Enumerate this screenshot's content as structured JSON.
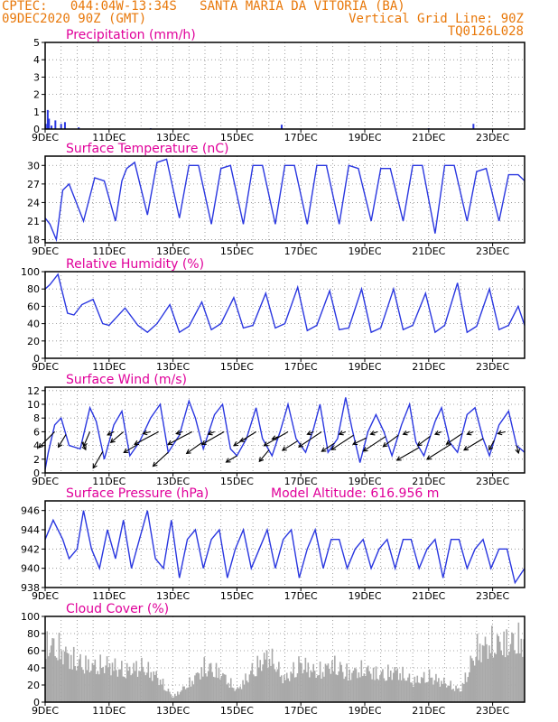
{
  "header": {
    "line1_left": "CPTEC:   044:04W-13:34S   SANTA MARIA DA VITORIA (BA)",
    "line2_left": "09DEC2020 90Z (GMT)",
    "line2_right": "Vertical Grid Line: 90Z",
    "line3_right": "TQ0126L028"
  },
  "colors": {
    "header": "#e8780a",
    "title": "#e0009a",
    "series": "#2a37e0",
    "cloud": "#a9a9a9",
    "grid": "#888888",
    "frame": "#000000"
  },
  "x_axis": {
    "start_day": 9,
    "end_day": 24,
    "tick_labels": [
      "9DEC",
      "11DEC",
      "13DEC",
      "15DEC",
      "17DEC",
      "19DEC",
      "21DEC",
      "23DEC"
    ],
    "tick_days": [
      9,
      11,
      13,
      15,
      17,
      19,
      21,
      23
    ]
  },
  "chart_data": [
    {
      "id": "precipitation",
      "type": "bar",
      "title": "Precipitation (mm/h)",
      "ylim": [
        0,
        5
      ],
      "yticks": [
        0,
        1,
        2,
        3,
        4,
        5
      ],
      "x": [
        9.02,
        9.08,
        9.12,
        9.2,
        9.32,
        9.5,
        9.62,
        10.05,
        12.3,
        16.4,
        21.0,
        22.4
      ],
      "values": [
        0.3,
        1.1,
        0.6,
        0.2,
        0.5,
        0.3,
        0.4,
        0.1,
        0.05,
        0.25,
        0.05,
        0.3
      ]
    },
    {
      "id": "temperature",
      "type": "line",
      "title": "Surface Temperature (nC)",
      "ylim": [
        17.5,
        31.5
      ],
      "yticks": [
        18,
        21,
        24,
        27,
        30
      ],
      "x": [
        9.0,
        9.15,
        9.35,
        9.55,
        9.75,
        10.2,
        10.55,
        10.85,
        11.2,
        11.4,
        11.55,
        11.8,
        12.2,
        12.5,
        12.8,
        13.2,
        13.5,
        13.8,
        14.2,
        14.5,
        14.8,
        15.2,
        15.5,
        15.8,
        16.2,
        16.5,
        16.8,
        17.2,
        17.5,
        17.8,
        18.2,
        18.5,
        18.8,
        19.2,
        19.5,
        19.8,
        20.2,
        20.5,
        20.8,
        21.2,
        21.5,
        21.8,
        22.2,
        22.5,
        22.8,
        23.2,
        23.5,
        23.8,
        24.0
      ],
      "y": [
        21.5,
        20.5,
        18.0,
        26.0,
        27.0,
        21.0,
        28.0,
        27.5,
        21.0,
        27.5,
        29.5,
        30.5,
        22.0,
        30.5,
        31.0,
        21.5,
        30.0,
        30.0,
        20.5,
        29.5,
        30.0,
        20.5,
        30.0,
        30.0,
        20.5,
        30.0,
        30.0,
        20.5,
        30.0,
        30.0,
        20.5,
        30.0,
        29.5,
        21.0,
        29.5,
        29.5,
        21.0,
        30.0,
        30.0,
        19.0,
        30.0,
        30.0,
        21.0,
        29.0,
        29.5,
        21.0,
        28.5,
        28.5,
        27.5
      ]
    },
    {
      "id": "humidity",
      "type": "line",
      "title": "Relative Humidity (%)",
      "ylim": [
        0,
        100
      ],
      "yticks": [
        0,
        20,
        40,
        60,
        80,
        100
      ],
      "x": [
        9.0,
        9.15,
        9.4,
        9.7,
        9.9,
        10.15,
        10.5,
        10.8,
        11.0,
        11.5,
        11.9,
        12.2,
        12.5,
        12.9,
        13.2,
        13.5,
        13.9,
        14.2,
        14.5,
        14.9,
        15.2,
        15.5,
        15.9,
        16.2,
        16.5,
        16.9,
        17.2,
        17.5,
        17.9,
        18.2,
        18.5,
        18.9,
        19.2,
        19.5,
        19.9,
        20.2,
        20.5,
        20.9,
        21.2,
        21.5,
        21.9,
        22.2,
        22.5,
        22.9,
        23.2,
        23.5,
        23.8,
        24.0
      ],
      "y": [
        80,
        85,
        97,
        52,
        50,
        62,
        68,
        40,
        38,
        58,
        38,
        30,
        40,
        62,
        30,
        37,
        65,
        33,
        40,
        70,
        35,
        38,
        75,
        35,
        40,
        82,
        32,
        38,
        78,
        33,
        35,
        80,
        30,
        35,
        80,
        33,
        38,
        75,
        30,
        38,
        87,
        30,
        37,
        80,
        33,
        38,
        60,
        38
      ]
    },
    {
      "id": "wind",
      "type": "line",
      "title": "Surface Wind (m/s)",
      "ylim": [
        0,
        12.5
      ],
      "yticks": [
        0,
        2,
        4,
        6,
        8,
        10,
        12
      ],
      "x": [
        9.0,
        9.1,
        9.3,
        9.5,
        9.75,
        10.1,
        10.4,
        10.6,
        10.85,
        11.15,
        11.4,
        11.65,
        11.95,
        12.3,
        12.6,
        12.85,
        13.2,
        13.5,
        13.7,
        13.95,
        14.3,
        14.55,
        14.8,
        15.0,
        15.3,
        15.6,
        15.8,
        16.1,
        16.35,
        16.6,
        16.85,
        17.15,
        17.4,
        17.6,
        17.85,
        18.15,
        18.4,
        18.6,
        18.85,
        19.1,
        19.35,
        19.6,
        19.85,
        20.15,
        20.4,
        20.6,
        20.85,
        21.2,
        21.4,
        21.65,
        21.9,
        22.2,
        22.45,
        22.7,
        22.9,
        23.2,
        23.5,
        23.75,
        24.0
      ],
      "y": [
        0.5,
        3.0,
        7.0,
        8.0,
        4.0,
        3.5,
        9.5,
        7.5,
        2.0,
        7.0,
        9.0,
        2.5,
        4.5,
        8.0,
        10.0,
        3.0,
        5.5,
        10.5,
        8.0,
        3.5,
        8.5,
        10.0,
        3.5,
        2.5,
        5.0,
        9.5,
        5.0,
        2.5,
        6.0,
        10.0,
        5.0,
        3.0,
        6.5,
        10.0,
        3.0,
        5.0,
        11.0,
        6.5,
        1.5,
        6.0,
        8.5,
        6.0,
        2.5,
        7.0,
        10.0,
        4.5,
        2.5,
        7.5,
        9.5,
        4.5,
        3.0,
        8.5,
        9.5,
        5.0,
        2.5,
        7.0,
        9.0,
        4.0,
        3.0
      ],
      "vectors": [
        {
          "day": 9.3,
          "u": -2.5,
          "v": -2.5
        },
        {
          "day": 9.65,
          "u": -1.2,
          "v": -2.0
        },
        {
          "day": 10.15,
          "u": 0.6,
          "v": -1.2
        },
        {
          "day": 10.4,
          "u": -1.0,
          "v": -2.3
        },
        {
          "day": 10.8,
          "u": -1.5,
          "v": -2.6
        },
        {
          "day": 11.15,
          "u": -1.0,
          "v": -0.5
        },
        {
          "day": 11.45,
          "u": -2.0,
          "v": -1.7
        },
        {
          "day": 11.9,
          "u": -2.2,
          "v": -1.3
        },
        {
          "day": 12.3,
          "u": -1.2,
          "v": -0.3
        },
        {
          "day": 12.55,
          "u": -3.8,
          "v": -2.0
        },
        {
          "day": 12.85,
          "u": -2.4,
          "v": -2.2
        },
        {
          "day": 13.3,
          "u": -1.0,
          "v": -0.3
        },
        {
          "day": 13.6,
          "u": -3.8,
          "v": -2.0
        },
        {
          "day": 13.9,
          "u": -2.4,
          "v": -1.7
        },
        {
          "day": 14.3,
          "u": -1.0,
          "v": -0.4
        },
        {
          "day": 14.6,
          "u": -3.5,
          "v": -2.0
        },
        {
          "day": 15.0,
          "u": -1.7,
          "v": -1.0
        },
        {
          "day": 15.3,
          "u": -1.0,
          "v": -0.4
        },
        {
          "day": 15.6,
          "u": -3.5,
          "v": -2.2
        },
        {
          "day": 16.0,
          "u": -1.5,
          "v": -1.8
        },
        {
          "day": 16.3,
          "u": -1.0,
          "v": -0.4
        },
        {
          "day": 16.6,
          "u": -3.8,
          "v": -2.2
        },
        {
          "day": 16.9,
          "u": -2.4,
          "v": -1.5
        },
        {
          "day": 17.4,
          "u": -1.0,
          "v": -0.4
        },
        {
          "day": 17.65,
          "u": -3.6,
          "v": -2.4
        },
        {
          "day": 18.05,
          "u": -2.0,
          "v": -1.3
        },
        {
          "day": 18.4,
          "u": -1.0,
          "v": -0.4
        },
        {
          "day": 18.65,
          "u": -3.5,
          "v": -2.3
        },
        {
          "day": 19.05,
          "u": -2.1,
          "v": -1.0
        },
        {
          "day": 19.4,
          "u": -1.1,
          "v": -0.4
        },
        {
          "day": 19.65,
          "u": -3.5,
          "v": -2.3
        },
        {
          "day": 20.05,
          "u": -2.4,
          "v": -1.8
        },
        {
          "day": 20.4,
          "u": -1.0,
          "v": -0.4
        },
        {
          "day": 20.7,
          "u": -3.5,
          "v": -2.0
        },
        {
          "day": 21.05,
          "u": -2.0,
          "v": -1.5
        },
        {
          "day": 21.4,
          "u": -1.0,
          "v": -0.4
        },
        {
          "day": 21.7,
          "u": -3.8,
          "v": -2.4
        },
        {
          "day": 22.05,
          "u": -2.5,
          "v": -1.7
        },
        {
          "day": 22.4,
          "u": -1.0,
          "v": -0.4
        },
        {
          "day": 22.7,
          "u": -3.0,
          "v": -1.8
        },
        {
          "day": 23.05,
          "u": -0.8,
          "v": -1.5
        },
        {
          "day": 23.4,
          "u": -1.2,
          "v": -0.3
        },
        {
          "day": 23.75,
          "u": 0.3,
          "v": -1.2
        }
      ]
    },
    {
      "id": "pressure",
      "type": "line",
      "title": "Surface Pressure (hPa)",
      "annotation": "Model Altitude: 616.956 m",
      "ylim": [
        938,
        947
      ],
      "yticks": [
        938,
        940,
        942,
        944,
        946
      ],
      "x": [
        9.0,
        9.25,
        9.55,
        9.75,
        10.0,
        10.2,
        10.45,
        10.7,
        10.95,
        11.2,
        11.45,
        11.7,
        11.95,
        12.2,
        12.45,
        12.7,
        12.95,
        13.2,
        13.45,
        13.7,
        13.95,
        14.2,
        14.45,
        14.7,
        14.95,
        15.2,
        15.45,
        15.7,
        15.95,
        16.2,
        16.45,
        16.7,
        16.95,
        17.2,
        17.45,
        17.7,
        17.95,
        18.2,
        18.45,
        18.7,
        18.95,
        19.2,
        19.45,
        19.7,
        19.95,
        20.2,
        20.45,
        20.7,
        20.95,
        21.2,
        21.45,
        21.7,
        21.95,
        22.2,
        22.45,
        22.7,
        22.95,
        23.2,
        23.45,
        23.7,
        24.0
      ],
      "y": [
        943,
        945,
        943,
        941,
        942,
        946,
        942,
        940,
        944,
        941,
        945,
        940,
        943,
        946,
        941,
        940,
        945,
        939,
        943,
        944,
        940,
        943,
        944,
        939,
        942,
        944,
        940,
        942,
        944,
        940,
        943,
        944,
        939,
        942,
        944,
        940,
        943,
        943,
        940,
        942,
        943,
        940,
        942,
        943,
        940,
        943,
        943,
        940,
        942,
        943,
        939,
        943,
        943,
        940,
        942,
        943,
        940,
        942,
        942,
        938.5,
        940
      ]
    },
    {
      "id": "cloud",
      "type": "bar",
      "title": "Cloud Cover (%)",
      "ylim": [
        0,
        100
      ],
      "yticks": [
        0,
        20,
        40,
        60,
        80,
        100
      ],
      "x": [
        9.0,
        9.5,
        10.0,
        10.5,
        11.0,
        11.5,
        12.0,
        12.5,
        13.0,
        13.5,
        14.0,
        14.5,
        15.0,
        15.5,
        16.0,
        16.5,
        17.0,
        17.5,
        18.0,
        18.5,
        19.0,
        19.5,
        20.0,
        20.5,
        21.0,
        21.5,
        22.0,
        22.5,
        23.0,
        23.5,
        24.0
      ],
      "values": [
        92,
        80,
        62,
        55,
        58,
        48,
        55,
        40,
        8,
        28,
        55,
        45,
        18,
        50,
        72,
        35,
        60,
        45,
        58,
        45,
        50,
        42,
        48,
        32,
        40,
        30,
        18,
        82,
        90,
        92,
        95
      ]
    }
  ]
}
